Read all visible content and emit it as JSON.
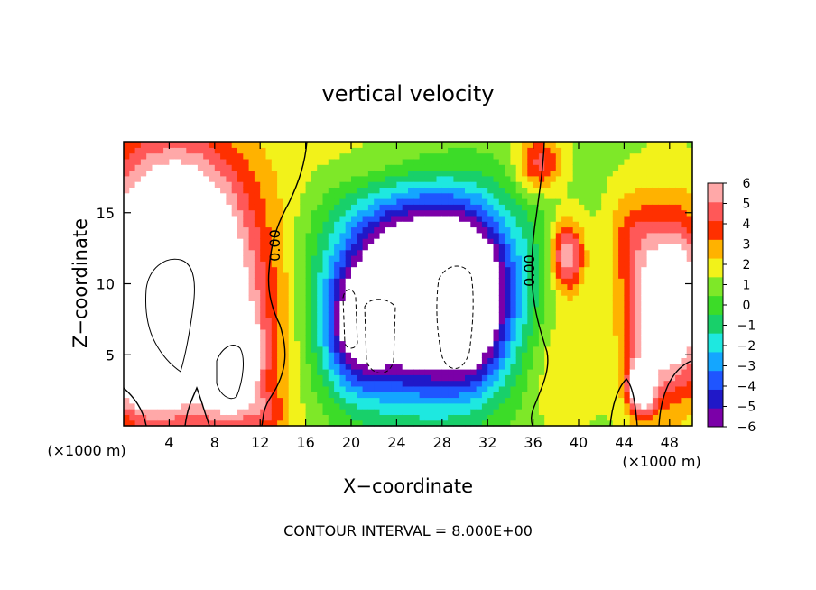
{
  "chart_data": {
    "type": "heatmap",
    "title": "vertical velocity",
    "xlabel": "X−coordinate",
    "ylabel": "Z−coordinate",
    "x_unit_left": "(×1000 m)",
    "x_unit_right": "(×1000 m)",
    "xlim": [
      0,
      50
    ],
    "ylim": [
      0,
      20
    ],
    "x_ticks": [
      4,
      8,
      12,
      16,
      20,
      24,
      28,
      32,
      36,
      40,
      44,
      48
    ],
    "y_ticks": [
      5,
      10,
      15
    ],
    "colorbar": {
      "min": -6,
      "max": 6,
      "ticks": [
        "6",
        "5",
        "4",
        "3",
        "2",
        "1",
        "0",
        "−1",
        "−2",
        "−3",
        "−4",
        "−5",
        "−6"
      ],
      "colors": [
        "#7b00a8",
        "#2018c8",
        "#1f55ff",
        "#14a6ff",
        "#1ee8e0",
        "#18d06a",
        "#3cdc28",
        "#7ee828",
        "#f2f21a",
        "#ffb200",
        "#ff3000",
        "#ff5858",
        "#ffa8a8"
      ]
    },
    "contour_labels": [
      "0.00",
      "0.00"
    ],
    "blobs": [
      {
        "x": 4.5,
        "z": 10.5,
        "rx": 7,
        "rz": 9,
        "amp": 10
      },
      {
        "x": 9.5,
        "z": 4.5,
        "rx": 2.4,
        "rz": 3.5,
        "amp": 7
      },
      {
        "x": 1.5,
        "z": 4.5,
        "rx": 2.2,
        "rz": 3,
        "amp": 5
      },
      {
        "x": 4.6,
        "z": 9.0,
        "rx": 3.5,
        "rz": 6,
        "amp": 5
      },
      {
        "x": 26.5,
        "z": 9.5,
        "rx": 7.5,
        "rz": 7,
        "amp": -13
      },
      {
        "x": 20.5,
        "z": 6.5,
        "rx": 2.8,
        "rz": 4,
        "amp": -4
      },
      {
        "x": 30.5,
        "z": 8.5,
        "rx": 2.6,
        "rz": 5,
        "amp": -4
      },
      {
        "x": 48.0,
        "z": 8.5,
        "rx": 3.5,
        "rz": 6,
        "amp": 8
      },
      {
        "x": 39.0,
        "z": 12.0,
        "rx": 1.5,
        "rz": 2.5,
        "amp": 5
      },
      {
        "x": 45.5,
        "z": 2.8,
        "rx": 1.2,
        "rz": 2,
        "amp": 6
      },
      {
        "x": 24.0,
        "z": 18.5,
        "rx": 7,
        "rz": 3,
        "amp": 1.5
      },
      {
        "x": 14.0,
        "z": 6.5,
        "rx": 2.5,
        "rz": 7,
        "amp": 0.8
      },
      {
        "x": 38.0,
        "z": 5.0,
        "rx": 3,
        "rz": 5,
        "amp": 1.5
      },
      {
        "x": 36.5,
        "z": 18.5,
        "rx": 2,
        "rz": 2,
        "amp": 3.5
      },
      {
        "x": 44.5,
        "z": 13.5,
        "rx": 2,
        "rz": 3,
        "amp": 1.5
      },
      {
        "x": 12.5,
        "z": 1.0,
        "rx": 2,
        "rz": 1.5,
        "amp": 2
      }
    ],
    "base": 1.2
  },
  "footer": {
    "contour_interval": "CONTOUR INTERVAL = 8.000E+00"
  }
}
